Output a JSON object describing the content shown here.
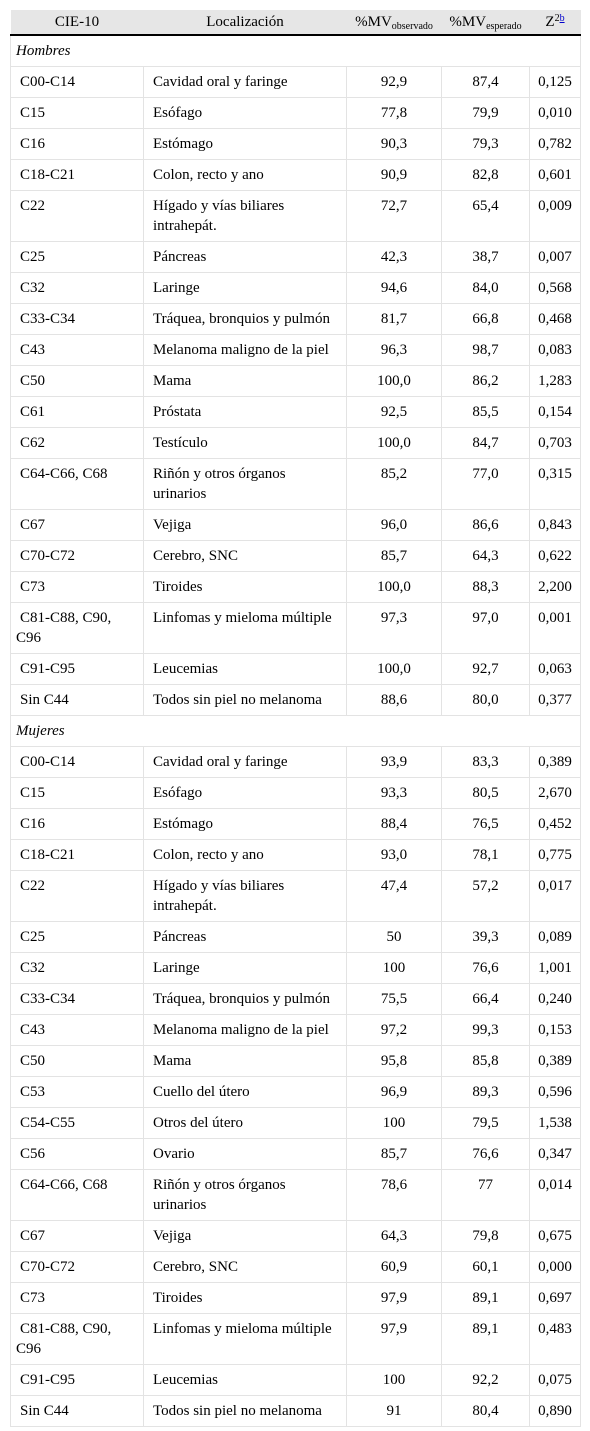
{
  "headers": {
    "code": "CIE-10",
    "site": "Localización",
    "obs_main": "%MV",
    "obs_sub": "observado",
    "exp_main": "%MV",
    "exp_sub": "esperado",
    "z_main": "Z",
    "z_sup": "2",
    "z_ref": "b"
  },
  "groups": [
    {
      "label": "Hombres",
      "rows": [
        {
          "code": "C00-C14",
          "site": "Cavidad oral y faringe",
          "obs": "92,9",
          "exp": "87,4",
          "z": "0,125"
        },
        {
          "code": "C15",
          "site": "Esófago",
          "obs": "77,8",
          "exp": "79,9",
          "z": "0,010"
        },
        {
          "code": "C16",
          "site": "Estómago",
          "obs": "90,3",
          "exp": "79,3",
          "z": "0,782"
        },
        {
          "code": "C18-C21",
          "site": "Colon, recto y ano",
          "obs": "90,9",
          "exp": "82,8",
          "z": "0,601"
        },
        {
          "code": "C22",
          "site": "Hígado y vías biliares intrahepát.",
          "obs": "72,7",
          "exp": "65,4",
          "z": "0,009"
        },
        {
          "code": "C25",
          "site": "Páncreas",
          "obs": "42,3",
          "exp": "38,7",
          "z": "0,007"
        },
        {
          "code": "C32",
          "site": "Laringe",
          "obs": "94,6",
          "exp": "84,0",
          "z": "0,568"
        },
        {
          "code": "C33-C34",
          "site": "Tráquea, bronquios y pulmón",
          "obs": "81,7",
          "exp": "66,8",
          "z": "0,468"
        },
        {
          "code": "C43",
          "site": "Melanoma maligno de la piel",
          "obs": "96,3",
          "exp": "98,7",
          "z": "0,083"
        },
        {
          "code": "C50",
          "site": "Mama",
          "obs": "100,0",
          "exp": "86,2",
          "z": "1,283"
        },
        {
          "code": "C61",
          "site": "Próstata",
          "obs": "92,5",
          "exp": "85,5",
          "z": "0,154"
        },
        {
          "code": "C62",
          "site": "Testículo",
          "obs": "100,0",
          "exp": "84,7",
          "z": "0,703"
        },
        {
          "code": "C64-C66, C68",
          "site": "Riñón y otros órganos urinarios",
          "obs": "85,2",
          "exp": "77,0",
          "z": "0,315"
        },
        {
          "code": "C67",
          "site": "Vejiga",
          "obs": "96,0",
          "exp": "86,6",
          "z": "0,843"
        },
        {
          "code": "C70-C72",
          "site": "Cerebro, SNC",
          "obs": "85,7",
          "exp": "64,3",
          "z": "0,622"
        },
        {
          "code": "C73",
          "site": "Tiroides",
          "obs": "100,0",
          "exp": "88,3",
          "z": "2,200"
        },
        {
          "code": "C81-C88, C90, C96",
          "site": "Linfomas y mieloma múltiple",
          "obs": "97,3",
          "exp": "97,0",
          "z": "0,001"
        },
        {
          "code": "C91-C95",
          "site": "Leucemias",
          "obs": "100,0",
          "exp": "92,7",
          "z": "0,063"
        },
        {
          "code": "Sin C44",
          "site": "Todos sin piel no melanoma",
          "obs": "88,6",
          "exp": "80,0",
          "z": "0,377"
        }
      ]
    },
    {
      "label": "Mujeres",
      "rows": [
        {
          "code": "C00-C14",
          "site": "Cavidad oral y faringe",
          "obs": "93,9",
          "exp": "83,3",
          "z": "0,389"
        },
        {
          "code": "C15",
          "site": "Esófago",
          "obs": "93,3",
          "exp": "80,5",
          "z": "2,670"
        },
        {
          "code": "C16",
          "site": "Estómago",
          "obs": "88,4",
          "exp": "76,5",
          "z": "0,452"
        },
        {
          "code": "C18-C21",
          "site": "Colon, recto y ano",
          "obs": "93,0",
          "exp": "78,1",
          "z": "0,775"
        },
        {
          "code": "C22",
          "site": "Hígado y vías biliares intrahepát.",
          "obs": "47,4",
          "exp": "57,2",
          "z": "0,017"
        },
        {
          "code": "C25",
          "site": "Páncreas",
          "obs": "50",
          "exp": "39,3",
          "z": "0,089"
        },
        {
          "code": "C32",
          "site": "Laringe",
          "obs": "100",
          "exp": "76,6",
          "z": "1,001"
        },
        {
          "code": "C33-C34",
          "site": "Tráquea, bronquios y pulmón",
          "obs": "75,5",
          "exp": "66,4",
          "z": "0,240"
        },
        {
          "code": "C43",
          "site": "Melanoma maligno de la piel",
          "obs": "97,2",
          "exp": "99,3",
          "z": "0,153"
        },
        {
          "code": "C50",
          "site": "Mama",
          "obs": "95,8",
          "exp": "85,8",
          "z": "0,389"
        },
        {
          "code": "C53",
          "site": "Cuello del útero",
          "obs": "96,9",
          "exp": "89,3",
          "z": "0,596"
        },
        {
          "code": "C54-C55",
          "site": "Otros del útero",
          "obs": "100",
          "exp": "79,5",
          "z": "1,538"
        },
        {
          "code": "C56",
          "site": "Ovario",
          "obs": "85,7",
          "exp": "76,6",
          "z": "0,347"
        },
        {
          "code": "C64-C66, C68",
          "site": "Riñón y otros órganos urinarios",
          "obs": "78,6",
          "exp": "77",
          "z": "0,014"
        },
        {
          "code": "C67",
          "site": "Vejiga",
          "obs": "64,3",
          "exp": "79,8",
          "z": "0,675"
        },
        {
          "code": "C70-C72",
          "site": "Cerebro, SNC",
          "obs": "60,9",
          "exp": "60,1",
          "z": "0,000"
        },
        {
          "code": "C73",
          "site": "Tiroides",
          "obs": "97,9",
          "exp": "89,1",
          "z": "0,697"
        },
        {
          "code": "C81-C88, C90, C96",
          "site": "Linfomas y mieloma múltiple",
          "obs": "97,9",
          "exp": "89,1",
          "z": "0,483"
        },
        {
          "code": "C91-C95",
          "site": "Leucemias",
          "obs": "100",
          "exp": "92,2",
          "z": "0,075"
        },
        {
          "code": "Sin C44",
          "site": "Todos sin piel no melanoma",
          "obs": "91",
          "exp": "80,4",
          "z": "0,890"
        }
      ]
    }
  ]
}
